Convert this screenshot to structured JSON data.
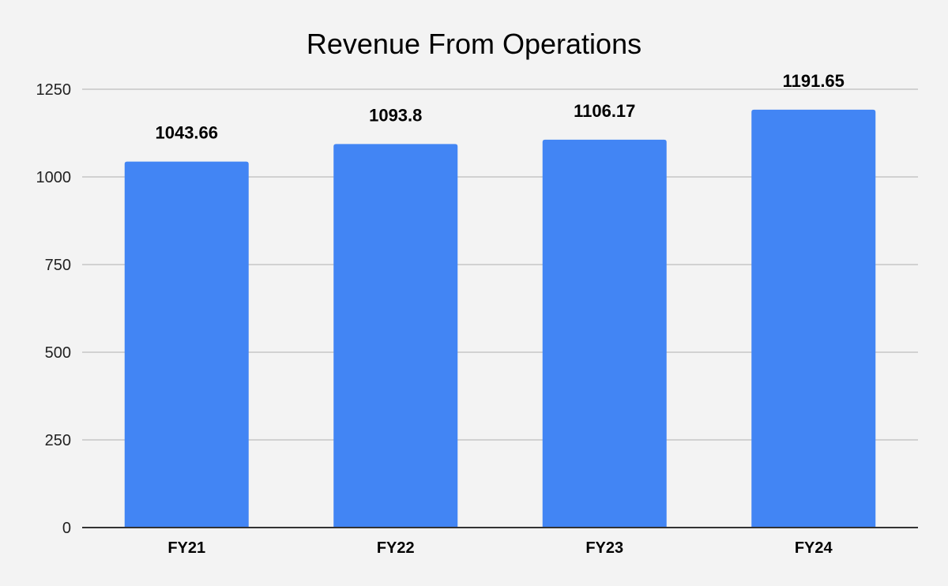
{
  "chart_data": {
    "type": "bar",
    "title": "Revenue From Operations",
    "categories": [
      "FY21",
      "FY22",
      "FY23",
      "FY24"
    ],
    "values": [
      1043.66,
      1093.8,
      1106.17,
      1191.65
    ],
    "value_labels": [
      "1043.66",
      "1093.8",
      "1106.17",
      "1191.65"
    ],
    "y_ticks": [
      0,
      250,
      500,
      750,
      1000,
      1250
    ],
    "ylim": [
      0,
      1250
    ],
    "xlabel": "",
    "ylabel": "",
    "grid": true,
    "legend": "none",
    "colors": {
      "bar": "#4285f4",
      "grid": "#c6c6c6",
      "axis": "#333333",
      "background": "#f3f3f3"
    }
  }
}
